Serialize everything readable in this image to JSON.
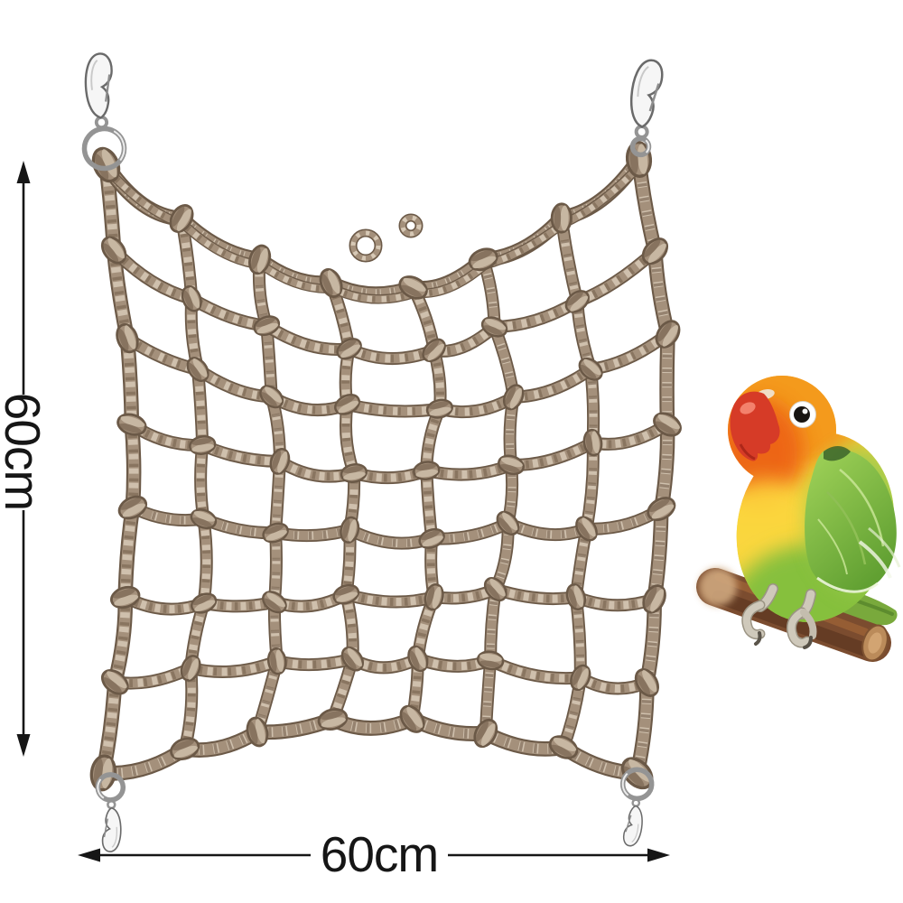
{
  "image": {
    "background": "#ffffff",
    "subject": "rope-climbing-net-with-bird"
  },
  "dimensions": {
    "vertical": {
      "label": "60cm"
    },
    "horizontal": {
      "label": "60cm"
    },
    "arrow_color": "#161616"
  },
  "net": {
    "grid": {
      "cols": 7,
      "rows": 7
    },
    "rope_colors": {
      "dark": "#6b5947",
      "base": "#a4907b",
      "light": "#d7c9b6",
      "shadow": "#7d6a55",
      "knot_core": "#cbbba6"
    },
    "metal_colors": {
      "light": "#ececec",
      "mid": "#949494",
      "dark": "#6a6a6a",
      "fill": "#f6f6f6"
    }
  },
  "bird": {
    "colors": {
      "crown_orange": "#f49a1c",
      "face_deep_orange": "#ed6414",
      "beak_red": "#d63b27",
      "chest_yellow": "#fdd53c",
      "body_green": "#86c03c",
      "wing_green_light": "#a2d45a",
      "wing_green_dark": "#61a032",
      "eye_ring": "#ffffff",
      "eye_black": "#181411",
      "feet_gray": "#cfc9bb",
      "branch_brown": "#7b4c2f",
      "branch_cut": "#bb8b5a"
    }
  }
}
